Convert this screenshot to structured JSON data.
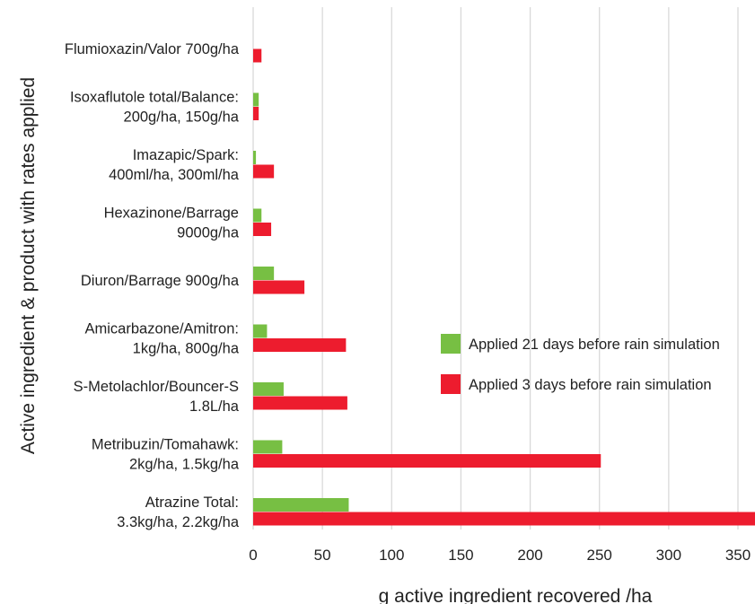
{
  "chart_data": {
    "type": "bar",
    "orientation": "horizontal",
    "categories": [
      [
        "Flumioxazin/Valor 700g/ha"
      ],
      [
        "Isoxaflutole total/Balance:",
        "200g/ha, 150g/ha"
      ],
      [
        "Imazapic/Spark:",
        "400ml/ha, 300ml/ha"
      ],
      [
        "Hexazinone/Barrage",
        "9000g/ha"
      ],
      [
        "Diuron/Barrage 900g/ha"
      ],
      [
        "Amicarbazone/Amitron:",
        "1kg/ha, 800g/ha"
      ],
      [
        "S-Metolachlor/Bouncer-S",
        "1.8L/ha"
      ],
      [
        "Metribuzin/Tomahawk:",
        "2kg/ha, 1.5kg/ha"
      ],
      [
        "Atrazine Total:",
        "3.3kg/ha, 2.2kg/ha"
      ]
    ],
    "series": [
      {
        "name": "Applied 21 days before rain simulation",
        "color": "#77bf43",
        "values": [
          null,
          4,
          2,
          6,
          15,
          10,
          22,
          21,
          69
        ]
      },
      {
        "name": "Applied 3 days before rain simulation",
        "color": "#ed1c2e",
        "values": [
          6,
          4,
          15,
          13,
          37,
          67,
          68,
          251,
          365
        ]
      }
    ],
    "xlabel": "g active ingredient recovered /ha",
    "ylabel": "Active ingredient & product with rates applied",
    "xlim": [
      0,
      360
    ],
    "xticks": [
      "0",
      "50",
      "100",
      "150",
      "200",
      "250",
      "300",
      "350"
    ],
    "grid": "vertical",
    "legend_position": "right-middle",
    "gridline_color": "#d9d9d9"
  }
}
